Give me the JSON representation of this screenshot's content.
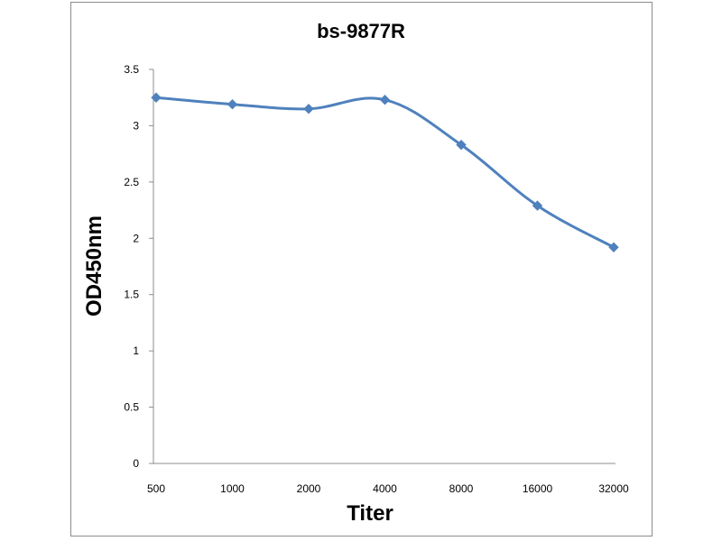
{
  "chart_data": {
    "type": "line",
    "title": "bs-9877R",
    "xlabel": "Titer",
    "ylabel": "OD450nm",
    "categories": [
      "500",
      "1000",
      "2000",
      "4000",
      "8000",
      "16000",
      "32000"
    ],
    "series": [
      {
        "values": [
          3.25,
          3.19,
          3.15,
          3.23,
          2.83,
          2.29,
          1.92
        ]
      }
    ],
    "ylim": [
      0,
      3.5
    ],
    "yticks": [
      "0",
      "0.5",
      "1",
      "1.5",
      "2",
      "2.5",
      "3",
      "3.5"
    ],
    "grid": false,
    "legend": "none",
    "line_color": "#4f81bd",
    "marker": "diamond"
  }
}
